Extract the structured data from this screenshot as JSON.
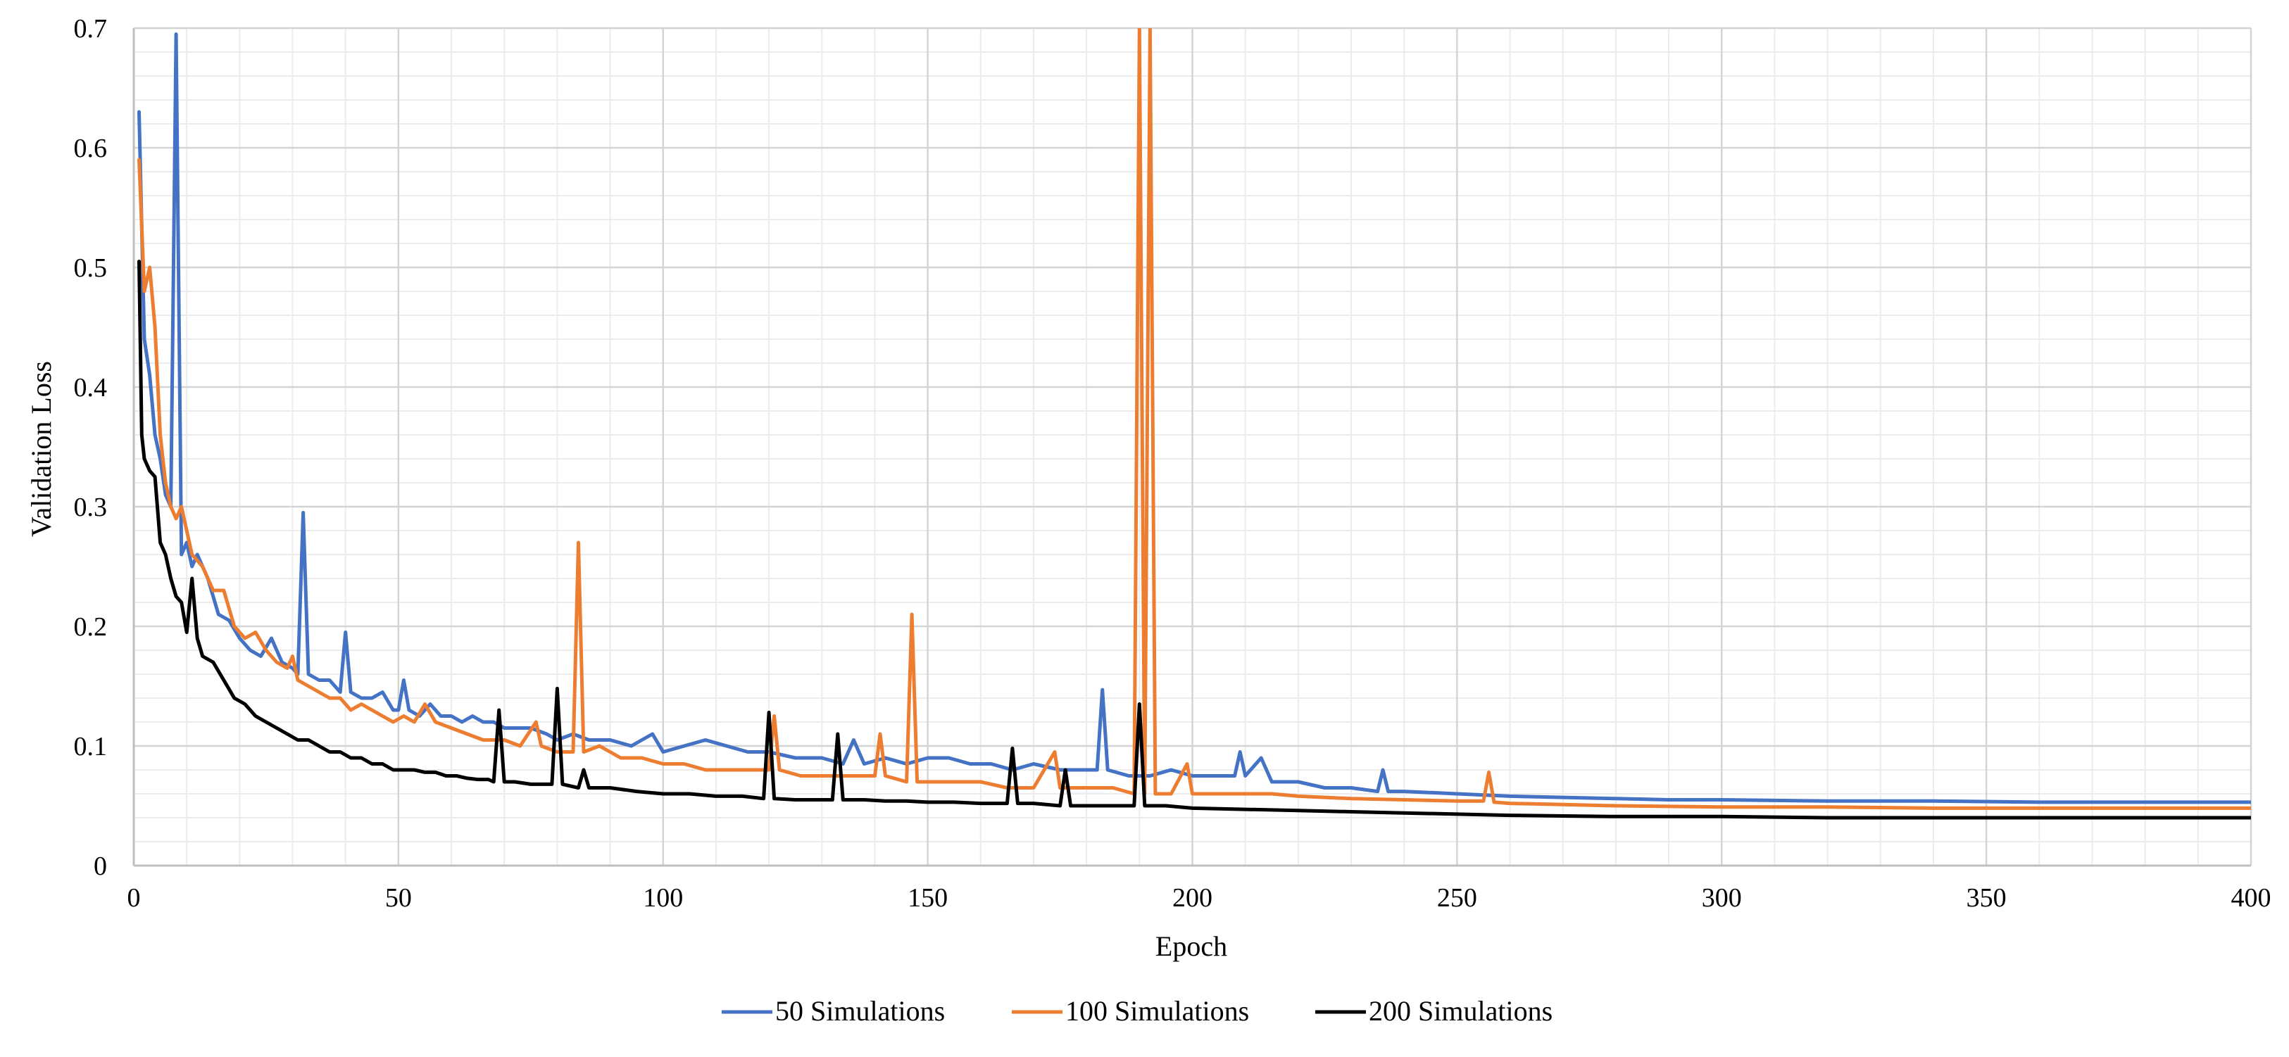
{
  "chart_data": {
    "type": "line",
    "xlabel": "Epoch",
    "ylabel": "Validation Loss",
    "xlim": [
      0,
      400
    ],
    "ylim": [
      0,
      0.7
    ],
    "x_ticks": [
      0,
      50,
      100,
      150,
      200,
      250,
      300,
      350,
      400
    ],
    "y_ticks": [
      0,
      0.1,
      0.2,
      0.3,
      0.4,
      0.5,
      0.6,
      0.7
    ],
    "x_tick_labels": [
      "0",
      "50",
      "100",
      "150",
      "200",
      "250",
      "300",
      "350",
      "400"
    ],
    "y_tick_labels": [
      "0",
      "0.1",
      "0.2",
      "0.3",
      "0.4",
      "0.5",
      "0.6",
      "0.7"
    ],
    "grid": {
      "major": true,
      "minor": true
    },
    "legend_position": "bottom",
    "series": [
      {
        "name": "50 Simulations",
        "color": "#4472C4",
        "points": [
          [
            1,
            0.63
          ],
          [
            2,
            0.44
          ],
          [
            3,
            0.41
          ],
          [
            4,
            0.36
          ],
          [
            5,
            0.34
          ],
          [
            6,
            0.31
          ],
          [
            7,
            0.3
          ],
          [
            8,
            0.695
          ],
          [
            9,
            0.26
          ],
          [
            10,
            0.27
          ],
          [
            11,
            0.25
          ],
          [
            12,
            0.26
          ],
          [
            14,
            0.24
          ],
          [
            16,
            0.21
          ],
          [
            18,
            0.205
          ],
          [
            20,
            0.19
          ],
          [
            22,
            0.18
          ],
          [
            24,
            0.175
          ],
          [
            26,
            0.19
          ],
          [
            28,
            0.17
          ],
          [
            30,
            0.165
          ],
          [
            31,
            0.16
          ],
          [
            32,
            0.295
          ],
          [
            33,
            0.16
          ],
          [
            35,
            0.155
          ],
          [
            37,
            0.155
          ],
          [
            39,
            0.145
          ],
          [
            40,
            0.195
          ],
          [
            41,
            0.145
          ],
          [
            43,
            0.14
          ],
          [
            45,
            0.14
          ],
          [
            47,
            0.145
          ],
          [
            49,
            0.13
          ],
          [
            50,
            0.13
          ],
          [
            51,
            0.155
          ],
          [
            52,
            0.13
          ],
          [
            54,
            0.125
          ],
          [
            56,
            0.135
          ],
          [
            58,
            0.125
          ],
          [
            60,
            0.125
          ],
          [
            62,
            0.12
          ],
          [
            64,
            0.125
          ],
          [
            66,
            0.12
          ],
          [
            68,
            0.12
          ],
          [
            70,
            0.115
          ],
          [
            72,
            0.115
          ],
          [
            75,
            0.115
          ],
          [
            78,
            0.11
          ],
          [
            80,
            0.105
          ],
          [
            83,
            0.11
          ],
          [
            86,
            0.105
          ],
          [
            90,
            0.105
          ],
          [
            94,
            0.1
          ],
          [
            98,
            0.11
          ],
          [
            100,
            0.095
          ],
          [
            104,
            0.1
          ],
          [
            108,
            0.105
          ],
          [
            112,
            0.1
          ],
          [
            116,
            0.095
          ],
          [
            120,
            0.095
          ],
          [
            125,
            0.09
          ],
          [
            130,
            0.09
          ],
          [
            134,
            0.085
          ],
          [
            136,
            0.105
          ],
          [
            138,
            0.085
          ],
          [
            142,
            0.09
          ],
          [
            146,
            0.085
          ],
          [
            150,
            0.09
          ],
          [
            154,
            0.09
          ],
          [
            158,
            0.085
          ],
          [
            162,
            0.085
          ],
          [
            166,
            0.08
          ],
          [
            170,
            0.085
          ],
          [
            175,
            0.08
          ],
          [
            180,
            0.08
          ],
          [
            182,
            0.08
          ],
          [
            183,
            0.147
          ],
          [
            184,
            0.08
          ],
          [
            188,
            0.075
          ],
          [
            192,
            0.075
          ],
          [
            196,
            0.08
          ],
          [
            200,
            0.075
          ],
          [
            204,
            0.075
          ],
          [
            208,
            0.075
          ],
          [
            209,
            0.095
          ],
          [
            210,
            0.075
          ],
          [
            213,
            0.09
          ],
          [
            215,
            0.07
          ],
          [
            220,
            0.07
          ],
          [
            225,
            0.065
          ],
          [
            230,
            0.065
          ],
          [
            235,
            0.062
          ],
          [
            236,
            0.08
          ],
          [
            237,
            0.062
          ],
          [
            240,
            0.062
          ],
          [
            250,
            0.06
          ],
          [
            260,
            0.058
          ],
          [
            270,
            0.057
          ],
          [
            280,
            0.056
          ],
          [
            290,
            0.055
          ],
          [
            300,
            0.055
          ],
          [
            320,
            0.054
          ],
          [
            340,
            0.054
          ],
          [
            360,
            0.053
          ],
          [
            380,
            0.053
          ],
          [
            400,
            0.053
          ]
        ]
      },
      {
        "name": "100 Simulations",
        "color": "#ED7D31",
        "points": [
          [
            1,
            0.59
          ],
          [
            2,
            0.48
          ],
          [
            3,
            0.5
          ],
          [
            4,
            0.45
          ],
          [
            5,
            0.36
          ],
          [
            6,
            0.32
          ],
          [
            7,
            0.3
          ],
          [
            8,
            0.29
          ],
          [
            9,
            0.3
          ],
          [
            10,
            0.28
          ],
          [
            11,
            0.26
          ],
          [
            13,
            0.25
          ],
          [
            15,
            0.23
          ],
          [
            17,
            0.23
          ],
          [
            19,
            0.2
          ],
          [
            21,
            0.19
          ],
          [
            23,
            0.195
          ],
          [
            25,
            0.18
          ],
          [
            27,
            0.17
          ],
          [
            29,
            0.165
          ],
          [
            30,
            0.175
          ],
          [
            31,
            0.155
          ],
          [
            33,
            0.15
          ],
          [
            35,
            0.145
          ],
          [
            37,
            0.14
          ],
          [
            39,
            0.14
          ],
          [
            41,
            0.13
          ],
          [
            43,
            0.135
          ],
          [
            45,
            0.13
          ],
          [
            47,
            0.125
          ],
          [
            49,
            0.12
          ],
          [
            51,
            0.125
          ],
          [
            53,
            0.12
          ],
          [
            55,
            0.135
          ],
          [
            57,
            0.12
          ],
          [
            60,
            0.115
          ],
          [
            63,
            0.11
          ],
          [
            66,
            0.105
          ],
          [
            70,
            0.105
          ],
          [
            73,
            0.1
          ],
          [
            76,
            0.12
          ],
          [
            77,
            0.1
          ],
          [
            80,
            0.095
          ],
          [
            83,
            0.095
          ],
          [
            84,
            0.27
          ],
          [
            85,
            0.095
          ],
          [
            88,
            0.1
          ],
          [
            92,
            0.09
          ],
          [
            96,
            0.09
          ],
          [
            100,
            0.085
          ],
          [
            104,
            0.085
          ],
          [
            108,
            0.08
          ],
          [
            112,
            0.08
          ],
          [
            116,
            0.08
          ],
          [
            120,
            0.08
          ],
          [
            121,
            0.125
          ],
          [
            122,
            0.08
          ],
          [
            126,
            0.075
          ],
          [
            130,
            0.075
          ],
          [
            135,
            0.075
          ],
          [
            140,
            0.075
          ],
          [
            141,
            0.11
          ],
          [
            142,
            0.075
          ],
          [
            146,
            0.07
          ],
          [
            147,
            0.21
          ],
          [
            148,
            0.07
          ],
          [
            152,
            0.07
          ],
          [
            156,
            0.07
          ],
          [
            160,
            0.07
          ],
          [
            165,
            0.065
          ],
          [
            170,
            0.065
          ],
          [
            174,
            0.095
          ],
          [
            175,
            0.065
          ],
          [
            180,
            0.065
          ],
          [
            185,
            0.065
          ],
          [
            189,
            0.06
          ],
          [
            190,
            0.7
          ],
          [
            191,
            0.06
          ],
          [
            192,
            0.7
          ],
          [
            193,
            0.06
          ],
          [
            196,
            0.06
          ],
          [
            199,
            0.085
          ],
          [
            200,
            0.06
          ],
          [
            205,
            0.06
          ],
          [
            210,
            0.06
          ],
          [
            215,
            0.06
          ],
          [
            220,
            0.058
          ],
          [
            230,
            0.056
          ],
          [
            240,
            0.055
          ],
          [
            250,
            0.054
          ],
          [
            255,
            0.054
          ],
          [
            256,
            0.078
          ],
          [
            257,
            0.053
          ],
          [
            260,
            0.052
          ],
          [
            270,
            0.051
          ],
          [
            280,
            0.05
          ],
          [
            300,
            0.049
          ],
          [
            320,
            0.049
          ],
          [
            340,
            0.048
          ],
          [
            360,
            0.048
          ],
          [
            380,
            0.048
          ],
          [
            400,
            0.048
          ]
        ]
      },
      {
        "name": "200 Simulations",
        "color": "#000000",
        "points": [
          [
            1,
            0.505
          ],
          [
            1.5,
            0.36
          ],
          [
            2,
            0.34
          ],
          [
            3,
            0.33
          ],
          [
            4,
            0.325
          ],
          [
            5,
            0.27
          ],
          [
            6,
            0.26
          ],
          [
            7,
            0.24
          ],
          [
            8,
            0.225
          ],
          [
            9,
            0.22
          ],
          [
            10,
            0.195
          ],
          [
            11,
            0.24
          ],
          [
            12,
            0.19
          ],
          [
            13,
            0.175
          ],
          [
            15,
            0.17
          ],
          [
            17,
            0.155
          ],
          [
            19,
            0.14
          ],
          [
            21,
            0.135
          ],
          [
            23,
            0.125
          ],
          [
            25,
            0.12
          ],
          [
            27,
            0.115
          ],
          [
            29,
            0.11
          ],
          [
            31,
            0.105
          ],
          [
            33,
            0.105
          ],
          [
            35,
            0.1
          ],
          [
            37,
            0.095
          ],
          [
            39,
            0.095
          ],
          [
            41,
            0.09
          ],
          [
            43,
            0.09
          ],
          [
            45,
            0.085
          ],
          [
            47,
            0.085
          ],
          [
            49,
            0.08
          ],
          [
            51,
            0.08
          ],
          [
            53,
            0.08
          ],
          [
            55,
            0.078
          ],
          [
            57,
            0.078
          ],
          [
            59,
            0.075
          ],
          [
            61,
            0.075
          ],
          [
            63,
            0.073
          ],
          [
            65,
            0.072
          ],
          [
            67,
            0.072
          ],
          [
            68,
            0.07
          ],
          [
            69,
            0.13
          ],
          [
            70,
            0.07
          ],
          [
            72,
            0.07
          ],
          [
            75,
            0.068
          ],
          [
            78,
            0.068
          ],
          [
            79,
            0.068
          ],
          [
            80,
            0.148
          ],
          [
            81,
            0.068
          ],
          [
            84,
            0.065
          ],
          [
            85,
            0.08
          ],
          [
            86,
            0.065
          ],
          [
            90,
            0.065
          ],
          [
            95,
            0.062
          ],
          [
            100,
            0.06
          ],
          [
            105,
            0.06
          ],
          [
            110,
            0.058
          ],
          [
            115,
            0.058
          ],
          [
            119,
            0.056
          ],
          [
            120,
            0.128
          ],
          [
            121,
            0.056
          ],
          [
            125,
            0.055
          ],
          [
            130,
            0.055
          ],
          [
            132,
            0.055
          ],
          [
            133,
            0.11
          ],
          [
            134,
            0.055
          ],
          [
            138,
            0.055
          ],
          [
            142,
            0.054
          ],
          [
            146,
            0.054
          ],
          [
            150,
            0.053
          ],
          [
            155,
            0.053
          ],
          [
            160,
            0.052
          ],
          [
            165,
            0.052
          ],
          [
            166,
            0.098
          ],
          [
            167,
            0.052
          ],
          [
            170,
            0.052
          ],
          [
            175,
            0.05
          ],
          [
            176,
            0.08
          ],
          [
            177,
            0.05
          ],
          [
            180,
            0.05
          ],
          [
            185,
            0.05
          ],
          [
            189,
            0.05
          ],
          [
            190,
            0.135
          ],
          [
            191,
            0.05
          ],
          [
            195,
            0.05
          ],
          [
            200,
            0.048
          ],
          [
            210,
            0.047
          ],
          [
            220,
            0.046
          ],
          [
            230,
            0.045
          ],
          [
            240,
            0.044
          ],
          [
            250,
            0.043
          ],
          [
            260,
            0.042
          ],
          [
            280,
            0.041
          ],
          [
            300,
            0.041
          ],
          [
            320,
            0.04
          ],
          [
            340,
            0.04
          ],
          [
            360,
            0.04
          ],
          [
            380,
            0.04
          ],
          [
            400,
            0.04
          ]
        ]
      }
    ]
  }
}
